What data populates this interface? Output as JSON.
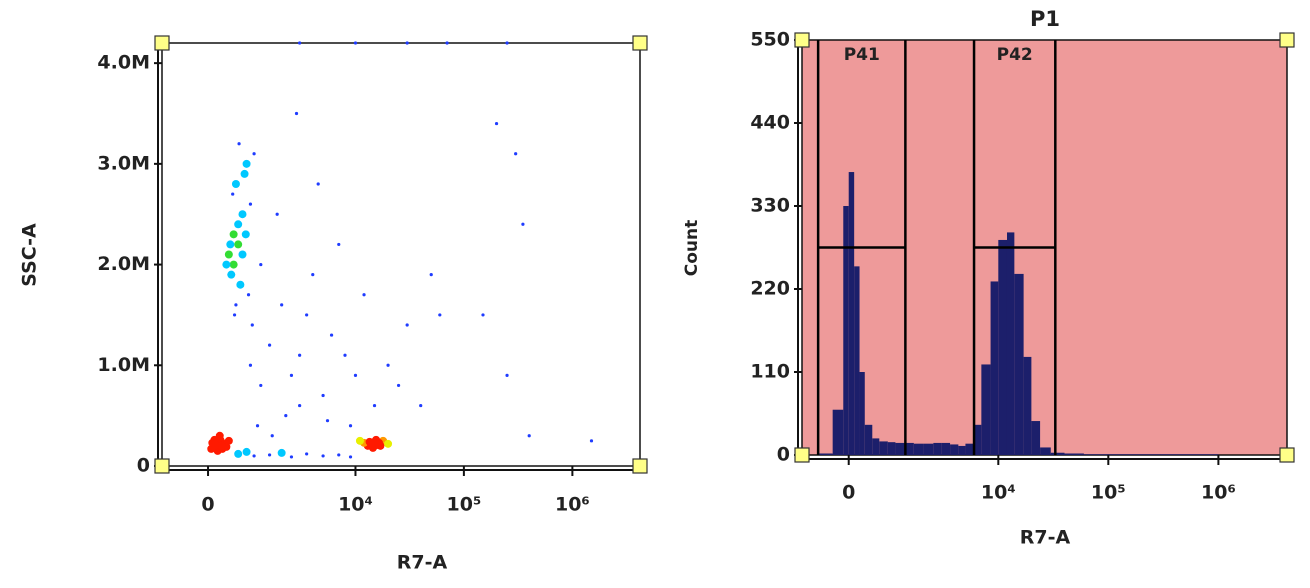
{
  "chart_data": [
    {
      "type": "scatter",
      "xlabel": "R7-A",
      "ylabel": "SSC-A",
      "xscale": "biexponential",
      "xlim": [
        -1000,
        4200000
      ],
      "ylim": [
        0,
        4200000
      ],
      "xticks": [
        {
          "value": 0,
          "label": "0"
        },
        {
          "value": 10000,
          "label": "10⁴"
        },
        {
          "value": 100000,
          "label": "10⁵"
        },
        {
          "value": 1000000,
          "label": "10⁶"
        }
      ],
      "yticks": [
        0,
        {
          "value": 1000000,
          "label": "1.0M"
        },
        {
          "value": 2000000,
          "label": "2.0M"
        },
        {
          "value": 3000000,
          "label": "3.0M"
        },
        {
          "value": 4000000,
          "label": "4.0M"
        }
      ],
      "color": "#1f3cff",
      "x": [
        100,
        150,
        200,
        250,
        120,
        300,
        180,
        220,
        80,
        350,
        160,
        270,
        200,
        140,
        230,
        190,
        60,
        400,
        210,
        170,
        250,
        130,
        14000,
        15000,
        13000,
        16000,
        12000,
        18000,
        14500,
        15500,
        17000,
        13500,
        14000,
        16500,
        20000,
        11000,
        15000,
        14500,
        500,
        600,
        450,
        700,
        550,
        800,
        400,
        650,
        900,
        500,
        750,
        350,
        1000,
        600,
        700,
        550,
        850,
        480,
        1200,
        620,
        520,
        780,
        430,
        950,
        1500,
        2500,
        3500,
        5000,
        8000,
        1200,
        2000,
        4000,
        6000,
        10000,
        3000,
        1800,
        7000,
        12000,
        20000,
        30000,
        2200,
        900,
        1100,
        15000,
        25000,
        40000,
        5500,
        9000,
        2800,
        4500,
        60000,
        3000,
        1600,
        50000,
        600,
        1000,
        1500,
        2500,
        3500,
        5000,
        7000,
        9000,
        2000,
        800,
        200000,
        300000,
        350000,
        150000,
        250000,
        1500000,
        400000,
        3000,
        10000,
        30000,
        70000,
        250000
      ],
      "values": [
        200000,
        220000,
        180000,
        240000,
        260000,
        210000,
        150000,
        300000,
        230000,
        190000,
        240000,
        170000,
        220000,
        190000,
        260000,
        200000,
        170000,
        250000,
        210000,
        230000,
        200000,
        210000,
        220000,
        240000,
        200000,
        210000,
        230000,
        250000,
        180000,
        260000,
        200000,
        240000,
        210000,
        230000,
        220000,
        250000,
        200000,
        230000,
        2000000,
        2200000,
        1900000,
        2500000,
        2800000,
        3000000,
        2100000,
        1800000,
        2600000,
        2300000,
        2900000,
        2000000,
        3100000,
        2400000,
        2100000,
        1600000,
        1700000,
        2700000,
        2000000,
        3200000,
        1500000,
        2300000,
        2200000,
        1400000,
        1200000,
        900000,
        1500000,
        700000,
        1100000,
        800000,
        1600000,
        1900000,
        1300000,
        900000,
        600000,
        2500000,
        2200000,
        1700000,
        1000000,
        1400000,
        500000,
        1000000,
        400000,
        600000,
        800000,
        600000,
        450000,
        400000,
        3500000,
        2800000,
        1500000,
        1100000,
        300000,
        1900000,
        120000,
        100000,
        110000,
        90000,
        120000,
        100000,
        110000,
        90000,
        130000,
        140000,
        3400000,
        3100000,
        2400000,
        1500000,
        900000,
        250000,
        300000,
        4200000,
        4200000,
        4200000,
        4200000,
        4200000
      ]
    },
    {
      "type": "histogram",
      "title": "P1",
      "xlabel": "R7-A",
      "ylabel": "Count",
      "xscale": "biexponential",
      "xlim": [
        -1000,
        4200000
      ],
      "ylim": [
        0,
        550
      ],
      "xticks": [
        {
          "value": 0,
          "label": "0"
        },
        {
          "value": 10000,
          "label": "10⁴"
        },
        {
          "value": 100000,
          "label": "10⁵"
        },
        {
          "value": 1000000,
          "label": "10⁶"
        }
      ],
      "yticks": [
        0,
        110,
        220,
        330,
        440,
        550
      ],
      "color": "#1c1f6b",
      "background": "#ee9a9a",
      "bins": [
        -1000,
        -600,
        -300,
        -100,
        0,
        100,
        200,
        300,
        450,
        600,
        800,
        1000,
        1300,
        1600,
        2000,
        2500,
        3000,
        3600,
        4300,
        5000,
        6000,
        7000,
        8500,
        10000,
        12000,
        14000,
        17000,
        20000,
        24000,
        30000,
        40000,
        60000,
        100000,
        300000,
        1000000,
        4200000
      ],
      "values": [
        0,
        2,
        60,
        330,
        375,
        250,
        110,
        40,
        22,
        18,
        17,
        16,
        16,
        15,
        15,
        16,
        16,
        14,
        12,
        15,
        40,
        120,
        230,
        285,
        295,
        240,
        130,
        45,
        10,
        3,
        2,
        1,
        1,
        1,
        0
      ],
      "gates": [
        {
          "label": "P41",
          "range": [
            -600,
            1300
          ],
          "level": 275
        },
        {
          "label": "P42",
          "range": [
            6000,
            33000
          ],
          "level": 275
        }
      ]
    }
  ]
}
